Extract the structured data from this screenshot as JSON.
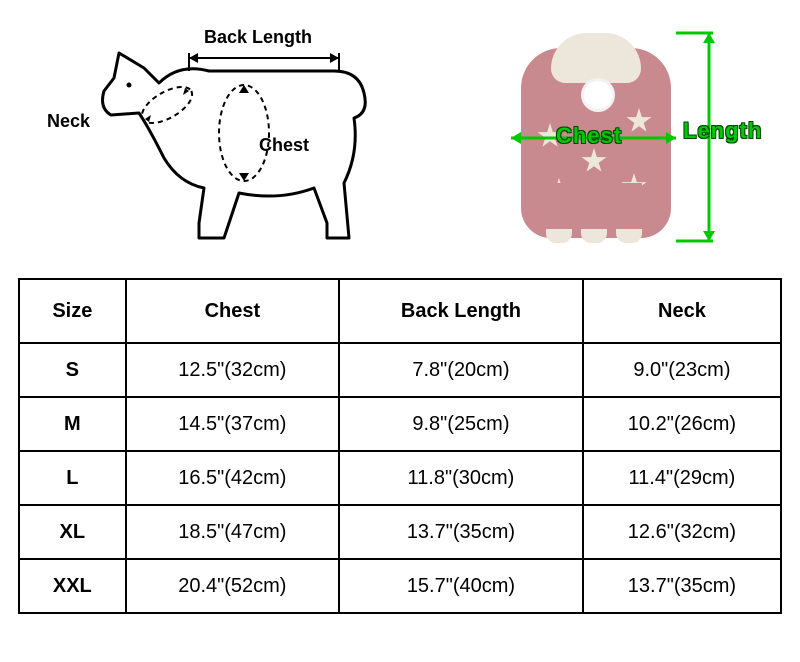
{
  "diagram": {
    "dog_labels": {
      "back_length": "Back Length",
      "neck": "Neck",
      "chest": "Chest"
    },
    "garment_labels": {
      "chest": "Chest",
      "length": "Length"
    },
    "dog_outline_color": "#000000",
    "dog_outline_width": 3,
    "measurement_arrow_color": "#00c800",
    "garment_body_color": "#c98a8f",
    "garment_accent_color": "#ede6db",
    "garment_pom_color": "#ffffff"
  },
  "table": {
    "headers": {
      "size": "Size",
      "chest": "Chest",
      "back_length": "Back Length",
      "neck": "Neck"
    },
    "rows": [
      {
        "size": "S",
        "chest": "12.5\"(32cm)",
        "back_length": "7.8\"(20cm)",
        "neck": "9.0\"(23cm)"
      },
      {
        "size": "M",
        "chest": "14.5\"(37cm)",
        "back_length": "9.8\"(25cm)",
        "neck": "10.2\"(26cm)"
      },
      {
        "size": "L",
        "chest": "16.5\"(42cm)",
        "back_length": "11.8\"(30cm)",
        "neck": "11.4\"(29cm)"
      },
      {
        "size": "XL",
        "chest": "18.5\"(47cm)",
        "back_length": "13.7\"(35cm)",
        "neck": "12.6\"(32cm)"
      },
      {
        "size": "XXL",
        "chest": "20.4\"(52cm)",
        "back_length": "15.7\"(40cm)",
        "neck": "13.7\"(35cm)"
      }
    ],
    "border_color": "#000000",
    "border_width": 2,
    "font_size": 20,
    "header_font_weight": "bold",
    "size_col_font_weight": "bold"
  }
}
